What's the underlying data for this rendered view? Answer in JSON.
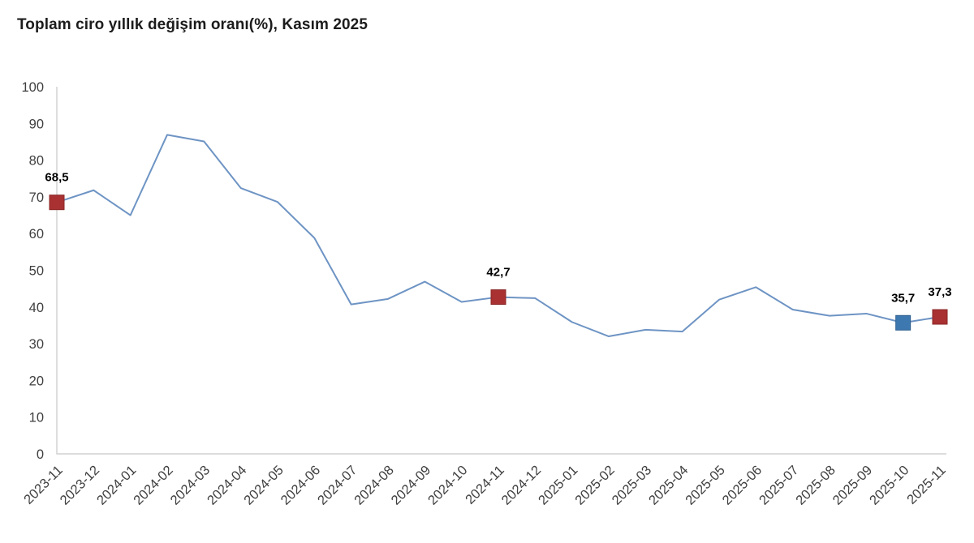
{
  "title": "Toplam ciro yıllık değişim oranı(%), Kasım 2025",
  "chart_data": {
    "type": "line",
    "title": "Toplam ciro yıllık değişim oranı(%), Kasım 2025",
    "x": [
      "2023-11",
      "2023-12",
      "2024-01",
      "2024-02",
      "2024-03",
      "2024-04",
      "2024-05",
      "2024-06",
      "2024-07",
      "2024-08",
      "2024-09",
      "2024-10",
      "2024-11",
      "2024-12",
      "2025-01",
      "2025-02",
      "2025-03",
      "2025-04",
      "2025-05",
      "2025-06",
      "2025-07",
      "2025-08",
      "2025-09",
      "2025-10",
      "2025-11"
    ],
    "values": [
      68.5,
      71.8,
      65.0,
      86.9,
      85.1,
      72.4,
      68.6,
      58.8,
      40.7,
      42.2,
      46.9,
      41.4,
      42.7,
      42.4,
      35.9,
      32.0,
      33.8,
      33.3,
      42.0,
      45.4,
      39.3,
      37.6,
      38.2,
      35.7,
      37.3
    ],
    "ylim": [
      0,
      100
    ],
    "yticks": [
      0,
      10,
      20,
      30,
      40,
      50,
      60,
      70,
      80,
      90,
      100
    ],
    "xlabel": "",
    "ylabel": "",
    "grid": false,
    "legend": "none",
    "colors": {
      "line": "#6e94c4",
      "axis": "#d0d0d0",
      "tick_text": "#3f3f3f",
      "value_label": "#000000"
    },
    "highlights": [
      {
        "index": 0,
        "x": "2023-11",
        "value": 68.5,
        "label": "68,5",
        "fill": "#a93132",
        "stroke": "#8a2626"
      },
      {
        "index": 12,
        "x": "2024-11",
        "value": 42.7,
        "label": "42,7",
        "fill": "#a93132",
        "stroke": "#8a2626"
      },
      {
        "index": 23,
        "x": "2025-10",
        "value": 35.7,
        "label": "35,7",
        "fill": "#3d78b0",
        "stroke": "#2e5f8f"
      },
      {
        "index": 24,
        "x": "2025-11",
        "value": 37.3,
        "label": "37,3",
        "fill": "#a93132",
        "stroke": "#8a2626"
      }
    ]
  }
}
